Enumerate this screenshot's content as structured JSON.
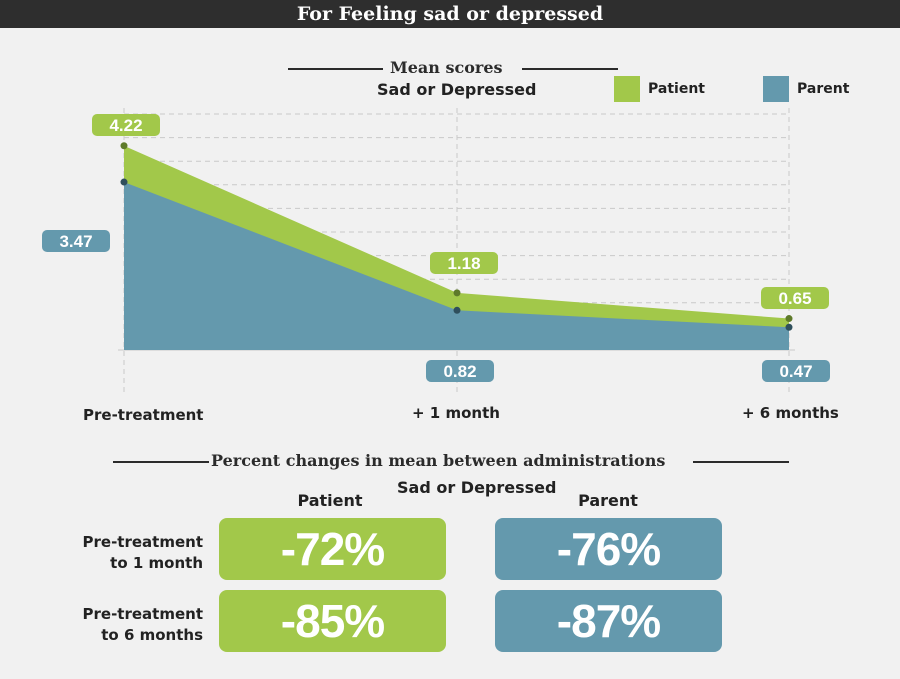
{
  "title": "For Feeling sad or depressed",
  "colors": {
    "patient": "#a2c84a",
    "parent": "#6499ad"
  },
  "chart_data": {
    "type": "area",
    "title": "Mean scores",
    "subtitle": "Sad or Depressed",
    "categories": [
      "Pre-treatment",
      "+ 1 month",
      "+ 6 months"
    ],
    "series": [
      {
        "name": "Patient",
        "values": [
          4.22,
          1.18,
          0.65
        ],
        "labels": [
          "4.22",
          "1.18",
          "0.65"
        ]
      },
      {
        "name": "Parent",
        "values": [
          3.47,
          0.82,
          0.47
        ],
        "labels": [
          "3.47",
          "0.82",
          "0.47"
        ]
      }
    ],
    "ylim": [
      0,
      5
    ],
    "grid": true,
    "legend": "top-right"
  },
  "percent": {
    "title": "Percent changes in mean between administrations",
    "subtitle": "Sad or Depressed",
    "columns": [
      "Patient",
      "Parent"
    ],
    "rows": [
      {
        "label_line1": "Pre-treatment",
        "label_line2": "to 1 month",
        "patient": "-72%",
        "parent": "-76%"
      },
      {
        "label_line1": "Pre-treatment",
        "label_line2": "to 6 months",
        "patient": "-85%",
        "parent": "-87%"
      }
    ]
  }
}
